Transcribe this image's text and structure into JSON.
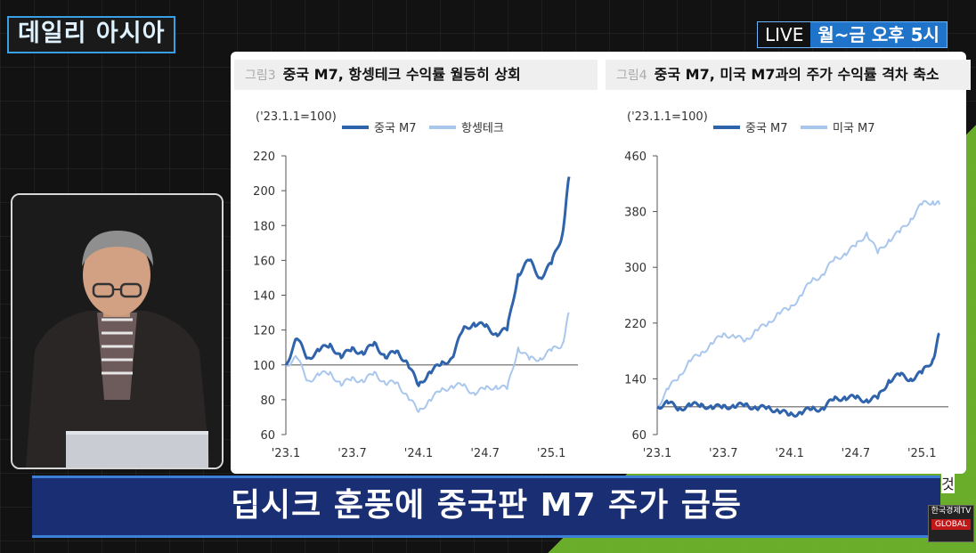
{
  "show": {
    "title": "데일리 아시아",
    "live": "LIVE",
    "schedule": "월~금 오후 5시"
  },
  "caption": "딥시크 훈풍에 중국판 M7 주가 급등",
  "panel_cutoff_text": "것",
  "channel_logo": {
    "text": "한국경제TV",
    "tag": "GLOBAL"
  },
  "colors": {
    "dark_series": "#2f63ac",
    "light_series": "#a9c7ec",
    "baseline": "#8a8a8a",
    "header_bg": "#efefef",
    "accent": "#1f73c8"
  },
  "chart_data": [
    {
      "figure_label": "그림3",
      "title": "중국 M7, 항셍테크 수익률 월등히 상회",
      "type": "line",
      "unit_note": "('23.1.1=100)",
      "ylim": [
        60,
        220
      ],
      "yticks": [
        60,
        80,
        100,
        120,
        140,
        160,
        180,
        200,
        220
      ],
      "x_ticklabels": [
        "'23.1",
        "'23.7",
        "'24.1",
        "'24.7",
        "'25.1"
      ],
      "x_tick_positions": [
        0,
        6,
        12,
        18,
        24
      ],
      "baseline": 100,
      "legend_placement": "top",
      "series": [
        {
          "name": "중국 M7",
          "style": "dark",
          "x": [
            0,
            1,
            2,
            3,
            4,
            5,
            6,
            7,
            8,
            9,
            10,
            11,
            12,
            13,
            14,
            15,
            16,
            17,
            18,
            19,
            20,
            21,
            22,
            23,
            24,
            25,
            25.6
          ],
          "values": [
            100,
            115,
            104,
            108,
            112,
            104,
            110,
            106,
            113,
            104,
            108,
            101,
            88,
            96,
            100,
            104,
            120,
            124,
            122,
            118,
            120,
            152,
            160,
            150,
            158,
            175,
            208
          ]
        },
        {
          "name": "항셍테크",
          "style": "light",
          "x": [
            0,
            1,
            2,
            3,
            4,
            5,
            6,
            7,
            8,
            9,
            10,
            11,
            12,
            13,
            14,
            15,
            16,
            17,
            18,
            19,
            20,
            21,
            22,
            23,
            24,
            25,
            25.6
          ],
          "values": [
            100,
            104,
            91,
            94,
            96,
            88,
            93,
            90,
            96,
            89,
            90,
            82,
            73,
            80,
            85,
            88,
            88,
            84,
            86,
            88,
            86,
            110,
            103,
            104,
            108,
            112,
            130
          ]
        }
      ]
    },
    {
      "figure_label": "그림4",
      "title": "중국 M7, 미국 M7과의 주가 수익률 격차 축소",
      "type": "line",
      "unit_note": "('23.1.1=100)",
      "ylim": [
        60,
        460
      ],
      "yticks": [
        60,
        140,
        220,
        300,
        380,
        460
      ],
      "x_ticklabels": [
        "'23.1",
        "'23.7",
        "'24.1",
        "'24.7",
        "'25.1"
      ],
      "x_tick_positions": [
        0,
        6,
        12,
        18,
        24
      ],
      "baseline": 100,
      "legend_placement": "top",
      "series": [
        {
          "name": "중국 M7",
          "style": "dark",
          "x": [
            0,
            1,
            2,
            3,
            4,
            5,
            6,
            7,
            8,
            9,
            10,
            11,
            12,
            13,
            14,
            15,
            16,
            17,
            18,
            19,
            20,
            21,
            22,
            23,
            24,
            25,
            25.6
          ],
          "values": [
            100,
            105,
            98,
            101,
            104,
            97,
            102,
            99,
            104,
            97,
            99,
            94,
            88,
            92,
            96,
            98,
            110,
            114,
            112,
            110,
            112,
            138,
            145,
            140,
            148,
            168,
            205
          ]
        },
        {
          "name": "미국 M7",
          "style": "light",
          "x": [
            0,
            1,
            2,
            3,
            4,
            5,
            6,
            7,
            8,
            9,
            10,
            11,
            12,
            13,
            14,
            15,
            16,
            17,
            18,
            19,
            20,
            21,
            22,
            23,
            24,
            25,
            25.6
          ],
          "values": [
            100,
            125,
            145,
            165,
            178,
            190,
            205,
            200,
            195,
            210,
            218,
            235,
            240,
            260,
            280,
            290,
            310,
            320,
            330,
            350,
            320,
            340,
            350,
            370,
            390,
            395,
            390
          ]
        }
      ]
    }
  ]
}
